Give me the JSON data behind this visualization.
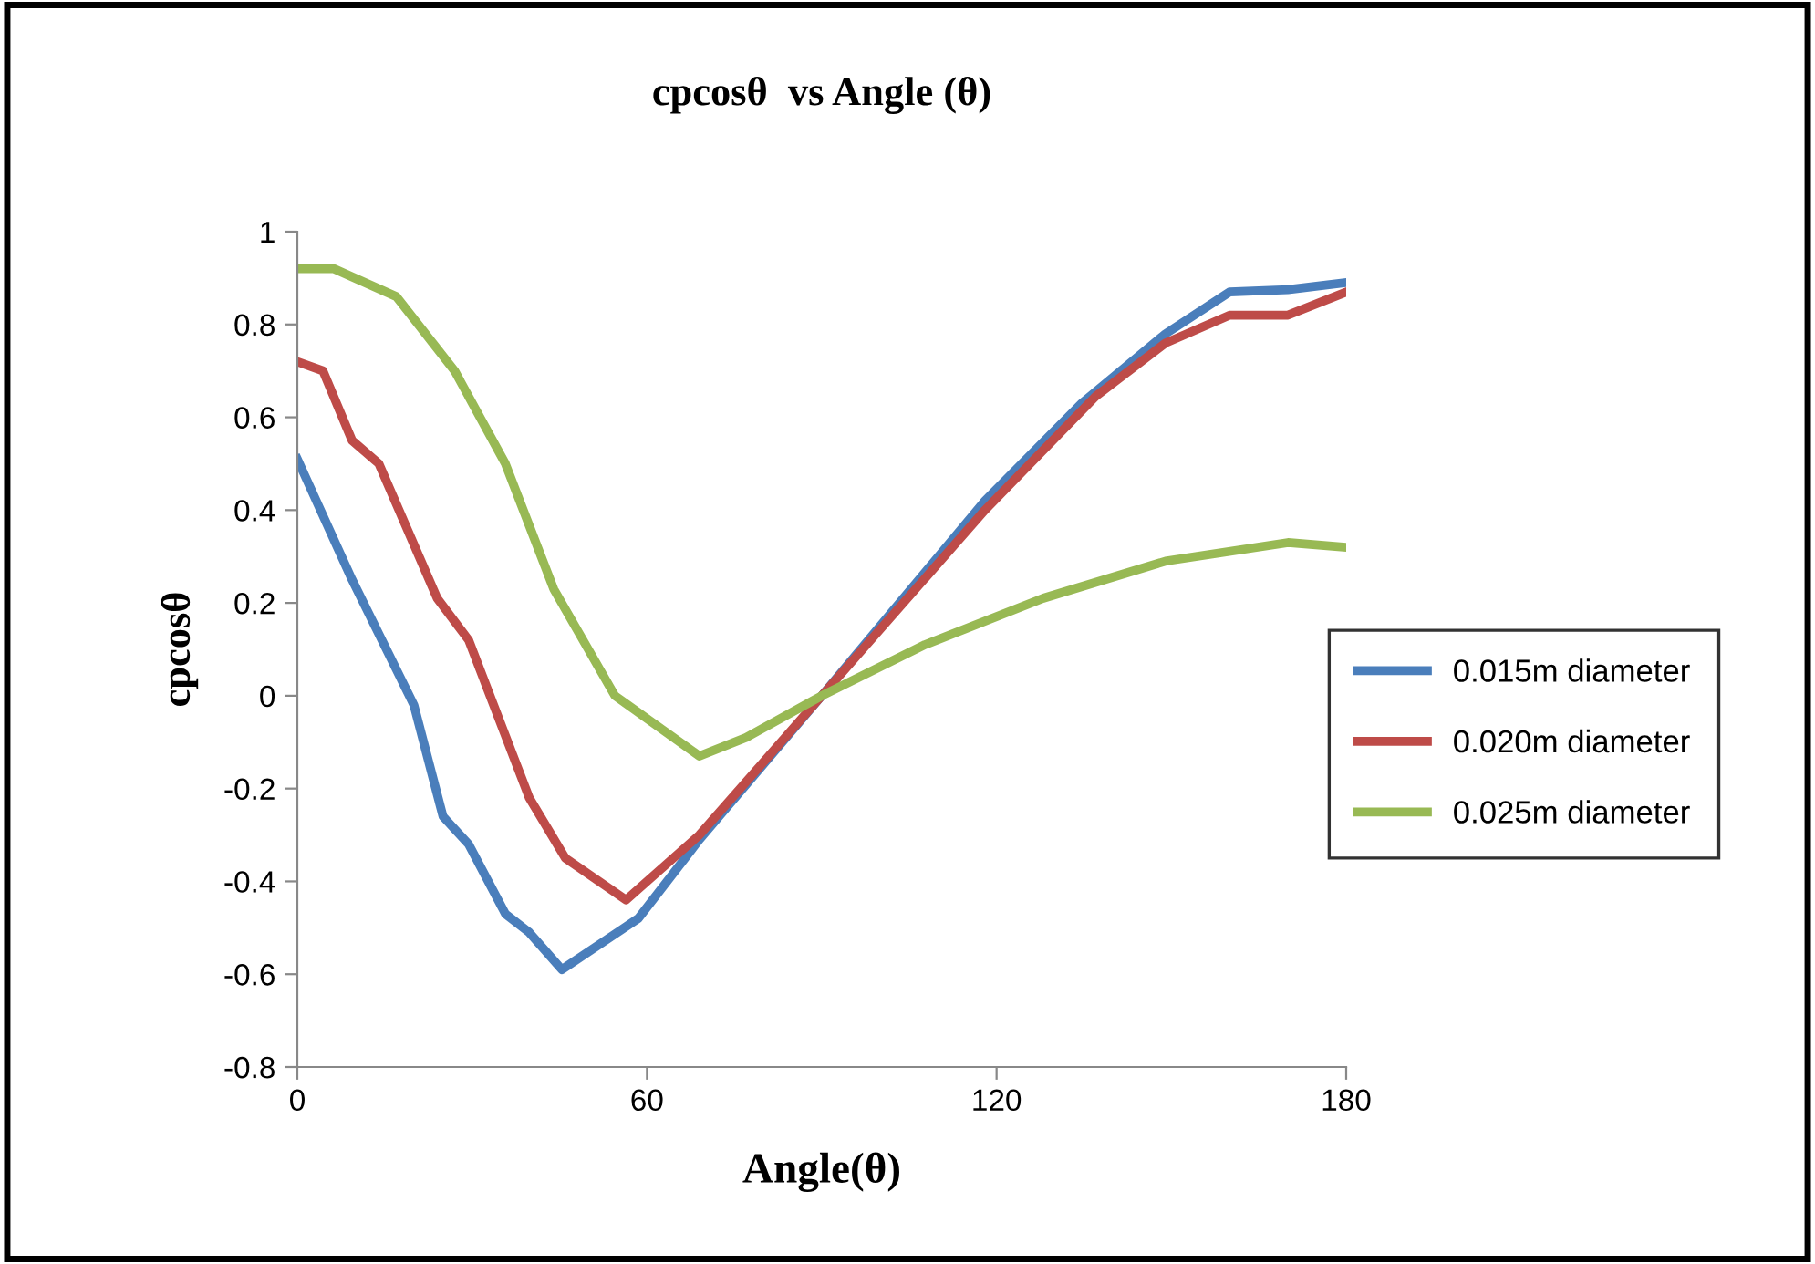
{
  "chart_data": {
    "type": "line",
    "title": "cpcosθ  vs Angle (θ)",
    "xlabel": "Angle(θ)",
    "ylabel": "cpcosθ",
    "xlim": [
      0,
      180
    ],
    "xticks": [
      0,
      60,
      120,
      180
    ],
    "ylim": [
      -0.8,
      1
    ],
    "yticks": [
      -0.8,
      -0.6,
      -0.4,
      -0.2,
      0,
      0.2,
      0.4,
      0.6,
      0.8,
      1
    ],
    "grid": false,
    "legend": "right",
    "marker": "none",
    "line_style": "solid",
    "series": [
      {
        "name": "0.015m diameter",
        "color": "#4a7ebb",
        "x": [
          0,
          9.4,
          20,
          25,
          29.4,
          35.7,
          39.8,
          45.4,
          58.5,
          69,
          90,
          118,
          134.6,
          149,
          160,
          170,
          180
        ],
        "values": [
          0.51,
          0.25,
          -0.02,
          -0.26,
          -0.32,
          -0.47,
          -0.51,
          -0.59,
          -0.48,
          -0.31,
          0,
          0.42,
          0.63,
          0.78,
          0.87,
          0.875,
          0.89
        ]
      },
      {
        "name": "0.020m diameter",
        "color": "#be4b48",
        "x": [
          0,
          4.4,
          9.4,
          14,
          24,
          29.4,
          39.8,
          46,
          56.4,
          69,
          79.5,
          90,
          118,
          137,
          149,
          160,
          170,
          180
        ],
        "values": [
          0.72,
          0.7,
          0.55,
          0.5,
          0.21,
          0.12,
          -0.22,
          -0.35,
          -0.44,
          -0.3,
          -0.15,
          0,
          0.4,
          0.645,
          0.76,
          0.82,
          0.82,
          0.87
        ]
      },
      {
        "name": "0.025m diameter",
        "color": "#98b954",
        "x": [
          0,
          6.3,
          17,
          27,
          35.7,
          44,
          54.5,
          69,
          77,
          90,
          107.7,
          128,
          149,
          170,
          180
        ],
        "values": [
          0.92,
          0.92,
          0.86,
          0.7,
          0.5,
          0.23,
          0,
          -0.13,
          -0.09,
          0,
          0.11,
          0.21,
          0.29,
          0.33,
          0.32
        ]
      }
    ]
  }
}
